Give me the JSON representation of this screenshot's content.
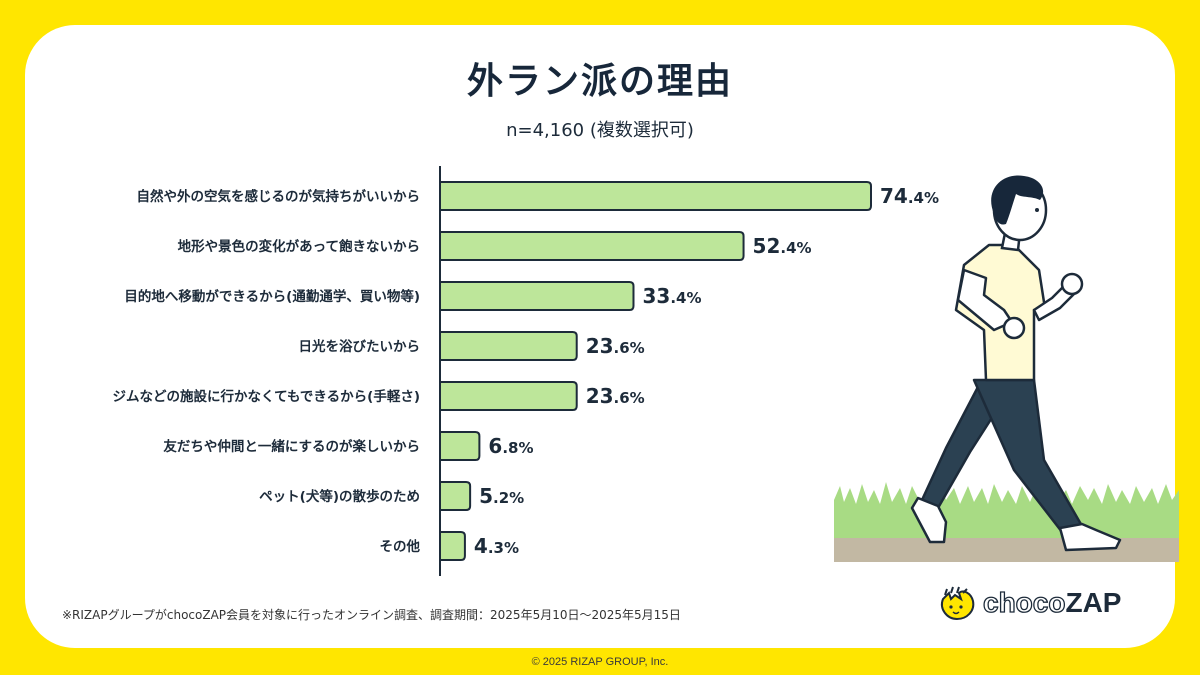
{
  "header": {
    "title": "外ラン派の理由",
    "subtitle": "n=4,160 (複数選択可)"
  },
  "chart_data": {
    "type": "bar",
    "orientation": "horizontal",
    "title": "外ラン派の理由",
    "subtitle": "n=4,160 (複数選択可)",
    "xlabel": "",
    "ylabel": "",
    "unit": "%",
    "xlim": [
      0,
      80
    ],
    "grid": false,
    "categories": [
      "自然や外の空気を感じるのが気持ちがいいから",
      "地形や景色の変化があって飽きないから",
      "目的地へ移動ができるから(通勤通学、買い物等)",
      "日光を浴びたいから",
      "ジムなどの施設に行かなくてもできるから(手軽さ)",
      "友だちや仲間と一緒にするのが楽しいから",
      "ペット(犬等)の散歩のため",
      "その他"
    ],
    "values": [
      74.4,
      52.4,
      33.4,
      23.6,
      23.6,
      6.8,
      5.2,
      4.3
    ],
    "value_labels": [
      {
        "int": "74",
        "dec": ".4%"
      },
      {
        "int": "52",
        "dec": ".4%"
      },
      {
        "int": "33",
        "dec": ".4%"
      },
      {
        "int": "23",
        "dec": ".6%"
      },
      {
        "int": "23",
        "dec": ".6%"
      },
      {
        "int": "6",
        "dec": ".8%"
      },
      {
        "int": "5",
        "dec": ".2%"
      },
      {
        "int": "4",
        "dec": ".3%"
      }
    ],
    "bar_color": "#BDE69A",
    "bar_stroke": "#1d2b3a"
  },
  "footer": {
    "note": "※RIZAPグループがchocoZAP会員を対象に行ったオンライン調査、調査期間：2025年5月10日〜2025年5月15日",
    "copyright": "© 2025 RIZAP GROUP, Inc."
  },
  "brand": {
    "logo_choco": "choco",
    "logo_zap": "ZAP",
    "icon": "chocozap-mascot-icon",
    "accent_yellow": "#FFE600"
  },
  "illustration": {
    "icon": "runner-illustration"
  }
}
